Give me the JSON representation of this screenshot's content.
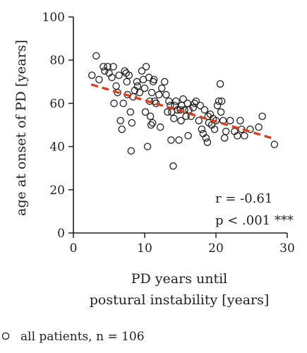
{
  "chart_data": {
    "type": "scatter",
    "xlabel_lines": [
      "PD years until",
      "postural instability [years]"
    ],
    "ylabel": "age at onset of PD [years]",
    "xlim": [
      0,
      30
    ],
    "ylim": [
      0,
      100
    ],
    "x_ticks": [
      "0",
      "10",
      "20",
      "30"
    ],
    "y_ticks": [
      "0",
      "20",
      "40",
      "60",
      "80",
      "100"
    ],
    "grid": false,
    "regression": {
      "style": "dashed",
      "color": "#d8401e",
      "x_range": [
        2.5,
        28
      ],
      "slope": -0.98,
      "intercept": 71.2
    },
    "annotations": {
      "r": "r = -0.61",
      "p": "p < .001 ***"
    },
    "legend": {
      "label": "all patients, n = 106",
      "position": "bottom-left"
    },
    "colors": {
      "axis": "#231f20",
      "markers": "#231f20",
      "fit_line": "#d8401e"
    },
    "points": [
      [
        2.6,
        73.0
      ],
      [
        3.2,
        82.0
      ],
      [
        3.6,
        71.0
      ],
      [
        4.2,
        77.0
      ],
      [
        4.4,
        75.0
      ],
      [
        4.8,
        77.0
      ],
      [
        5.0,
        74.0
      ],
      [
        5.4,
        72.0
      ],
      [
        5.6,
        77.0
      ],
      [
        5.7,
        60.0
      ],
      [
        6.0,
        68.0
      ],
      [
        6.2,
        65.0
      ],
      [
        6.4,
        73.0
      ],
      [
        6.6,
        52.0
      ],
      [
        6.8,
        48.0
      ],
      [
        7.0,
        60.0
      ],
      [
        7.2,
        75.0
      ],
      [
        7.4,
        74.0
      ],
      [
        7.5,
        70.0
      ],
      [
        7.6,
        64.0
      ],
      [
        7.8,
        73.0
      ],
      [
        8.0,
        56.0
      ],
      [
        8.1,
        38.0
      ],
      [
        8.2,
        51.0
      ],
      [
        8.4,
        63.0
      ],
      [
        8.6,
        66.0
      ],
      [
        8.9,
        70.0
      ],
      [
        9.0,
        68.0
      ],
      [
        9.3,
        65.0
      ],
      [
        9.6,
        75.0
      ],
      [
        9.8,
        71.0
      ],
      [
        10.0,
        67.0
      ],
      [
        10.1,
        56.0
      ],
      [
        10.2,
        77.0
      ],
      [
        10.4,
        40.0
      ],
      [
        10.6,
        72.0
      ],
      [
        10.7,
        61.0
      ],
      [
        10.8,
        54.0
      ],
      [
        10.9,
        50.0
      ],
      [
        11.0,
        65.0
      ],
      [
        11.1,
        51.0
      ],
      [
        11.2,
        70.0
      ],
      [
        11.3,
        71.0
      ],
      [
        11.4,
        61.0
      ],
      [
        11.6,
        60.0
      ],
      [
        12.0,
        64.0
      ],
      [
        12.2,
        49.0
      ],
      [
        12.4,
        67.0
      ],
      [
        12.8,
        70.0
      ],
      [
        13.0,
        64.0
      ],
      [
        13.2,
        56.0
      ],
      [
        13.4,
        61.0
      ],
      [
        13.6,
        59.0
      ],
      [
        13.7,
        43.0
      ],
      [
        13.8,
        56.0
      ],
      [
        14.0,
        31.0
      ],
      [
        14.1,
        53.0
      ],
      [
        14.2,
        59.0
      ],
      [
        14.4,
        61.0
      ],
      [
        14.6,
        57.0
      ],
      [
        14.8,
        43.0
      ],
      [
        15.0,
        57.0
      ],
      [
        15.1,
        52.0
      ],
      [
        15.2,
        59.0
      ],
      [
        15.4,
        62.0
      ],
      [
        15.6,
        57.0
      ],
      [
        15.8,
        54.0
      ],
      [
        16.0,
        60.0
      ],
      [
        16.1,
        45.0
      ],
      [
        16.2,
        57.0
      ],
      [
        16.5,
        54.0
      ],
      [
        16.8,
        58.0
      ],
      [
        17.0,
        60.0
      ],
      [
        17.2,
        61.0
      ],
      [
        17.6,
        52.0
      ],
      [
        17.8,
        59.0
      ],
      [
        18.0,
        48.0
      ],
      [
        18.2,
        46.0
      ],
      [
        18.4,
        57.0
      ],
      [
        18.6,
        44.0
      ],
      [
        18.8,
        42.0
      ],
      [
        18.9,
        54.0
      ],
      [
        19.0,
        51.0
      ],
      [
        19.2,
        55.0
      ],
      [
        19.4,
        50.0
      ],
      [
        19.6,
        53.0
      ],
      [
        19.8,
        48.0
      ],
      [
        20.0,
        52.0
      ],
      [
        20.2,
        59.0
      ],
      [
        20.4,
        61.0
      ],
      [
        20.6,
        69.0
      ],
      [
        20.7,
        56.0
      ],
      [
        20.8,
        61.0
      ],
      [
        21.0,
        52.0
      ],
      [
        21.2,
        44.0
      ],
      [
        21.4,
        47.0
      ],
      [
        22.0,
        52.0
      ],
      [
        22.6,
        47.0
      ],
      [
        23.0,
        45.0
      ],
      [
        23.4,
        52.0
      ],
      [
        23.6,
        48.0
      ],
      [
        24.0,
        45.0
      ],
      [
        24.8,
        48.0
      ],
      [
        26.0,
        49.0
      ],
      [
        26.5,
        54.0
      ],
      [
        28.2,
        41.0
      ]
    ]
  }
}
